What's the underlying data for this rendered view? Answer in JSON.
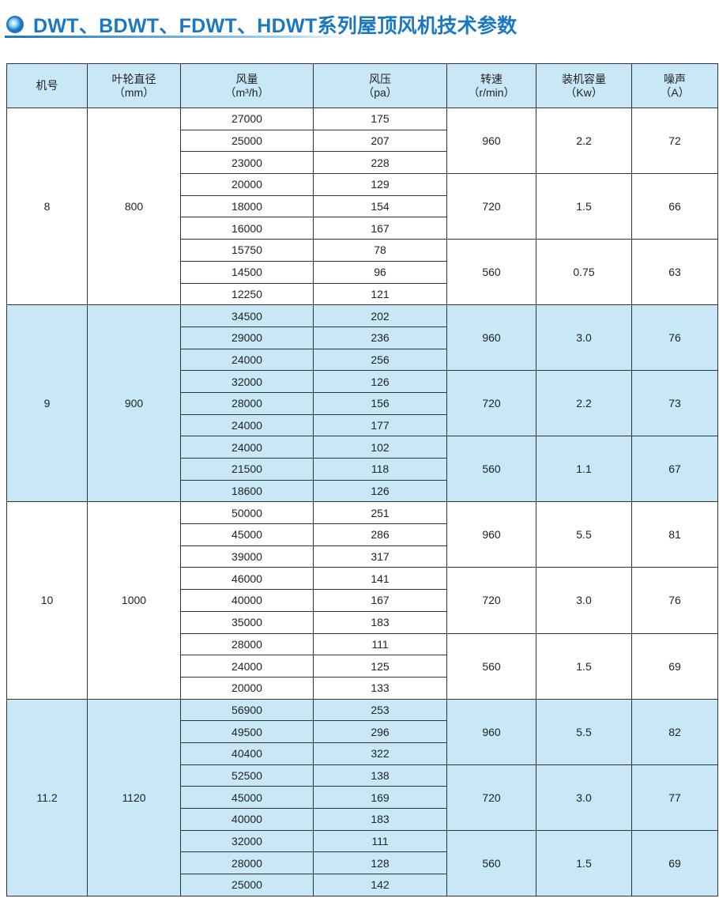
{
  "title": "DWT、BDWT、FDWT、HDWT系列屋顶风机技术参数",
  "colors": {
    "title": "#1a78c2",
    "band": "#c8e8f8"
  },
  "headers": [
    {
      "name": "机号",
      "unit": ""
    },
    {
      "name": "叶轮直径",
      "unit": "（mm）"
    },
    {
      "name": "风量",
      "unit": "（m³/h）"
    },
    {
      "name": "风压",
      "unit": "（pa）"
    },
    {
      "name": "转速",
      "unit": "（r/min）"
    },
    {
      "name": "装机容量",
      "unit": "（Kw）"
    },
    {
      "name": "噪声",
      "unit": "（A）"
    }
  ],
  "groups": [
    {
      "model": "8",
      "diameter": "800",
      "speeds": [
        {
          "rpm": "960",
          "power": "2.2",
          "noise": "72",
          "rows": [
            [
              "27000",
              "175"
            ],
            [
              "25000",
              "207"
            ],
            [
              "23000",
              "228"
            ]
          ]
        },
        {
          "rpm": "720",
          "power": "1.5",
          "noise": "66",
          "rows": [
            [
              "20000",
              "129"
            ],
            [
              "18000",
              "154"
            ],
            [
              "16000",
              "167"
            ]
          ]
        },
        {
          "rpm": "560",
          "power": "0.75",
          "noise": "63",
          "rows": [
            [
              "15750",
              "78"
            ],
            [
              "14500",
              "96"
            ],
            [
              "12250",
              "121"
            ]
          ]
        }
      ]
    },
    {
      "model": "9",
      "diameter": "900",
      "speeds": [
        {
          "rpm": "960",
          "power": "3.0",
          "noise": "76",
          "rows": [
            [
              "34500",
              "202"
            ],
            [
              "29000",
              "236"
            ],
            [
              "24000",
              "256"
            ]
          ]
        },
        {
          "rpm": "720",
          "power": "2.2",
          "noise": "73",
          "rows": [
            [
              "32000",
              "126"
            ],
            [
              "28000",
              "156"
            ],
            [
              "24000",
              "177"
            ]
          ]
        },
        {
          "rpm": "560",
          "power": "1.1",
          "noise": "67",
          "rows": [
            [
              "24000",
              "102"
            ],
            [
              "21500",
              "118"
            ],
            [
              "18600",
              "126"
            ]
          ]
        }
      ]
    },
    {
      "model": "10",
      "diameter": "1000",
      "speeds": [
        {
          "rpm": "960",
          "power": "5.5",
          "noise": "81",
          "rows": [
            [
              "50000",
              "251"
            ],
            [
              "45000",
              "286"
            ],
            [
              "39000",
              "317"
            ]
          ]
        },
        {
          "rpm": "720",
          "power": "3.0",
          "noise": "76",
          "rows": [
            [
              "46000",
              "141"
            ],
            [
              "40000",
              "167"
            ],
            [
              "35000",
              "183"
            ]
          ]
        },
        {
          "rpm": "560",
          "power": "1.5",
          "noise": "69",
          "rows": [
            [
              "28000",
              "111"
            ],
            [
              "24000",
              "125"
            ],
            [
              "20000",
              "133"
            ]
          ]
        }
      ]
    },
    {
      "model": "11.2",
      "diameter": "1120",
      "speeds": [
        {
          "rpm": "960",
          "power": "5.5",
          "noise": "82",
          "rows": [
            [
              "56900",
              "253"
            ],
            [
              "49500",
              "296"
            ],
            [
              "40400",
              "322"
            ]
          ]
        },
        {
          "rpm": "720",
          "power": "3.0",
          "noise": "77",
          "rows": [
            [
              "52500",
              "138"
            ],
            [
              "45000",
              "169"
            ],
            [
              "40000",
              "183"
            ]
          ]
        },
        {
          "rpm": "560",
          "power": "1.5",
          "noise": "69",
          "rows": [
            [
              "32000",
              "111"
            ],
            [
              "28000",
              "128"
            ],
            [
              "25000",
              "142"
            ]
          ]
        }
      ]
    }
  ]
}
